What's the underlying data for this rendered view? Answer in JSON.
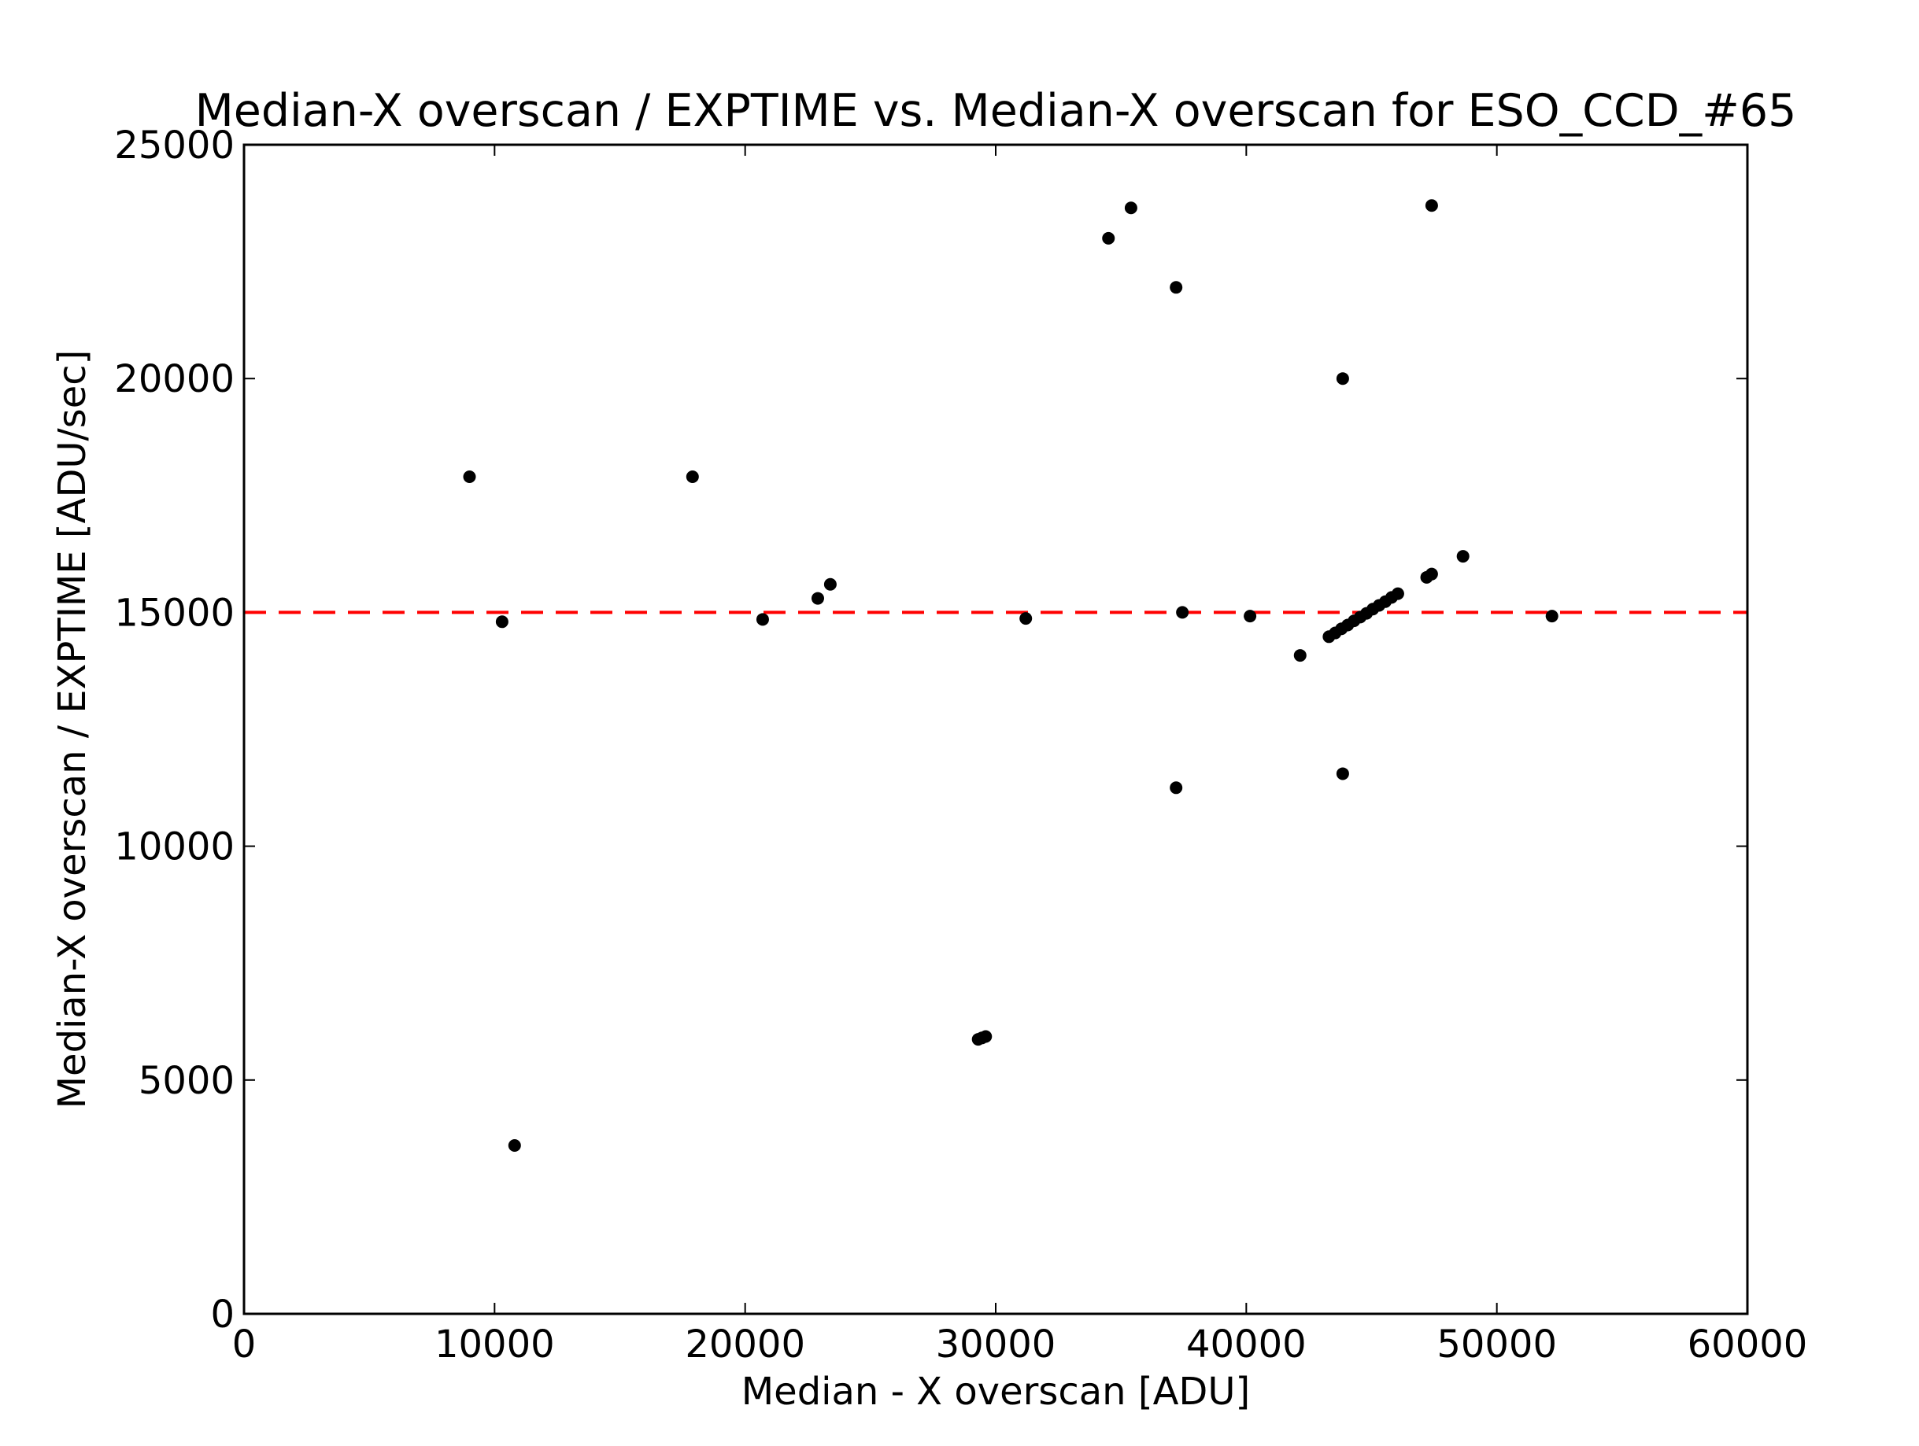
{
  "chart_data": {
    "type": "scatter",
    "title": "Median-X overscan / EXPTIME vs. Median-X overscan for ESO_CCD_#65",
    "x_label": "Median - X overscan [ADU]",
    "y_label": "Median-X overscan / EXPTIME [ADU/sec]",
    "xlim": [
      0,
      60000
    ],
    "ylim": [
      0,
      25000
    ],
    "xticks": [
      0,
      10000,
      20000,
      30000,
      40000,
      50000,
      60000
    ],
    "yticks": [
      0,
      5000,
      10000,
      15000,
      20000,
      25000
    ],
    "reference_line": {
      "y": 15000,
      "color": "#ff0000"
    },
    "series": [
      {
        "color": "#000000",
        "x": [
          9000,
          10300,
          10800,
          17900,
          20700,
          22900,
          23400,
          29300,
          29450,
          29600,
          31200,
          34500,
          35400,
          37200,
          37200,
          37450,
          40150,
          42150,
          43850,
          43850,
          47400,
          48650,
          47200,
          47400,
          52200,
          43300,
          43550,
          43800,
          44050,
          44300,
          44550,
          44800,
          45050,
          45300,
          45550,
          45800,
          46050
        ],
        "values": [
          17900,
          14800,
          3600,
          17900,
          14850,
          15300,
          15600,
          5870,
          5900,
          5930,
          14870,
          23000,
          23650,
          21950,
          11250,
          15000,
          14920,
          14080,
          20000,
          11550,
          23700,
          16200,
          15750,
          15820,
          14920,
          14480,
          14560,
          14650,
          14730,
          14820,
          14900,
          14980,
          15070,
          15150,
          15230,
          15320,
          15400
        ]
      }
    ]
  }
}
